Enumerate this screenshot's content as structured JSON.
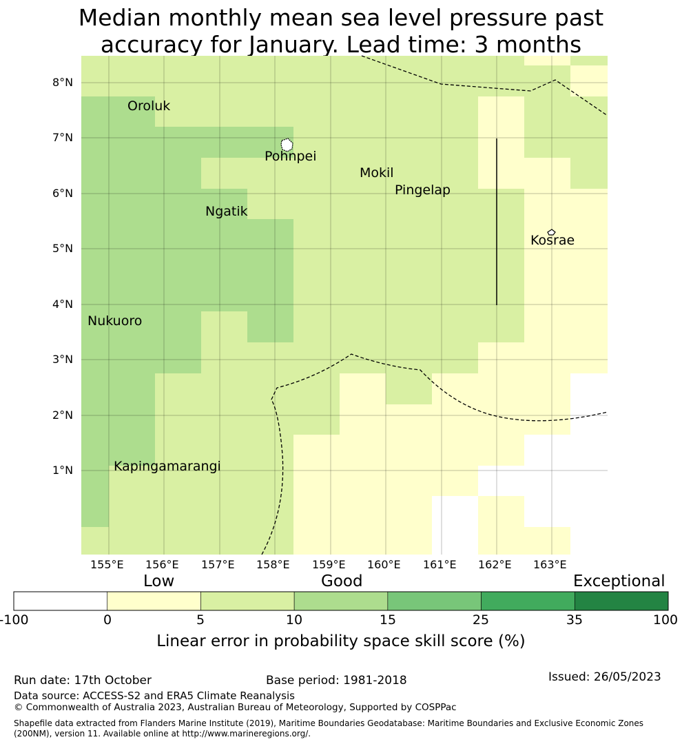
{
  "title": {
    "line1": "Median monthly mean sea level pressure past",
    "line2": "accuracy for January. Lead time: 3 months"
  },
  "map": {
    "lat_labels": [
      "8°N",
      "7°N",
      "6°N",
      "5°N",
      "4°N",
      "3°N",
      "2°N",
      "1°N"
    ],
    "lon_labels": [
      "155°E",
      "156°E",
      "157°E",
      "158°E",
      "159°E",
      "160°E",
      "161°E",
      "162°E",
      "163°E"
    ],
    "places": {
      "oroluk": "Oroluk",
      "pohnpei": "Pohnpei",
      "mokil": "Mokil",
      "pingelap": "Pingelap",
      "ngatik": "Ngatik",
      "kosrae": "Kosrae",
      "nukuoro": "Nukuoro",
      "kapingamarangi": "Kapingamarangi"
    }
  },
  "colorbar": {
    "category_low": "Low",
    "category_good": "Good",
    "category_exceptional": "Exceptional",
    "ticks": [
      "-100",
      "0",
      "5",
      "10",
      "15",
      "25",
      "35",
      "100"
    ],
    "colors": [
      "#ffffff",
      "#ffffcc",
      "#d9f0a3",
      "#addd8e",
      "#78c679",
      "#41ab5d",
      "#238443"
    ],
    "title": "Linear error in probability space skill score (%)"
  },
  "footer": {
    "run_date": "Run date: 17th October",
    "base_period": "Base period: 1981-2018",
    "issued": "Issued: 26/05/2023",
    "data_source": "Data source: ACCESS-S2 and ERA5 Climate Reanalysis",
    "copyright": "© Commonwealth of Australia 2023, Australian Bureau of Meteorology, Supported by COSPPac",
    "shapefile_line1": "Shapefile data extracted from Flanders Marine Institute (2019), Maritime Boundaries Geodatabase: Maritime Boundaries and Exclusive Economic Zones",
    "shapefile_line2": "(200NM), version 11. Available online at http://www.marineregions.org/."
  }
}
